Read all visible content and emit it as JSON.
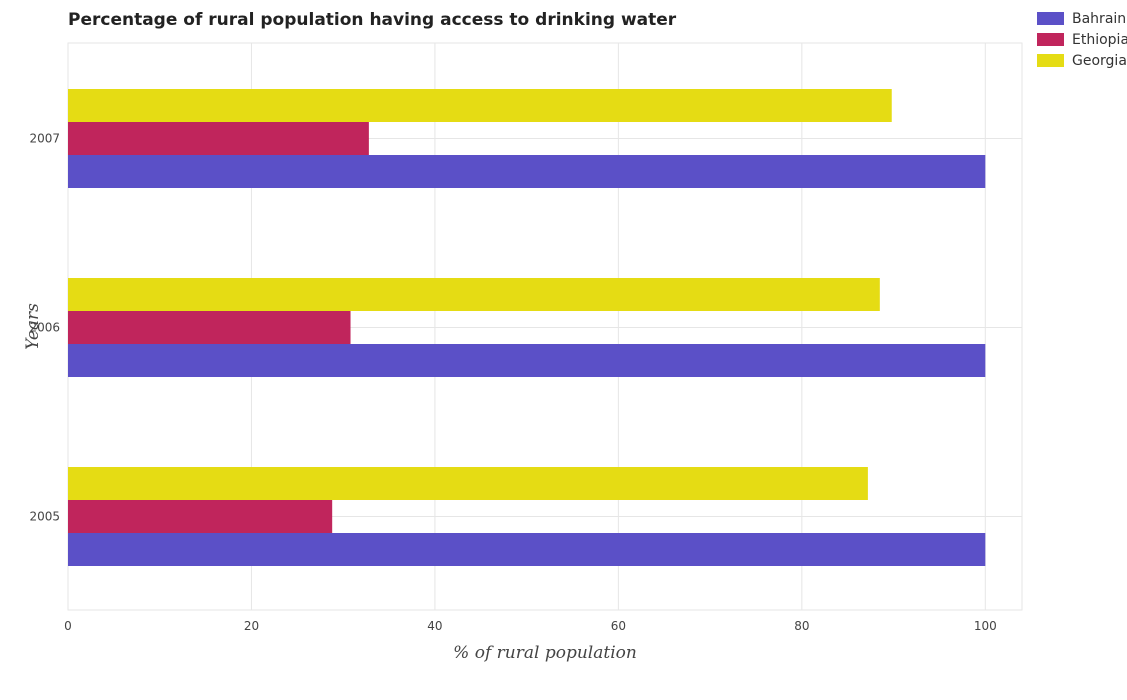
{
  "chart_data": {
    "type": "bar",
    "orientation": "horizontal",
    "title": "Percentage of rural population having access to drinking water",
    "xlabel": "% of rural population",
    "ylabel": "Years",
    "categories": [
      "2005",
      "2006",
      "2007"
    ],
    "series": [
      {
        "name": "Bahrain",
        "color": "#5b50c7",
        "values": [
          100,
          100,
          100
        ]
      },
      {
        "name": "Ethiopia",
        "color": "#c0255c",
        "values": [
          28.8,
          30.8,
          32.8
        ]
      },
      {
        "name": "Georgia",
        "color": "#e5dc14",
        "values": [
          87.2,
          88.5,
          89.8
        ]
      }
    ],
    "xlim": [
      0,
      104
    ],
    "xticks": [
      "0",
      "20",
      "40",
      "60",
      "80",
      "100"
    ],
    "grid": true,
    "legend_position": "top-right"
  }
}
